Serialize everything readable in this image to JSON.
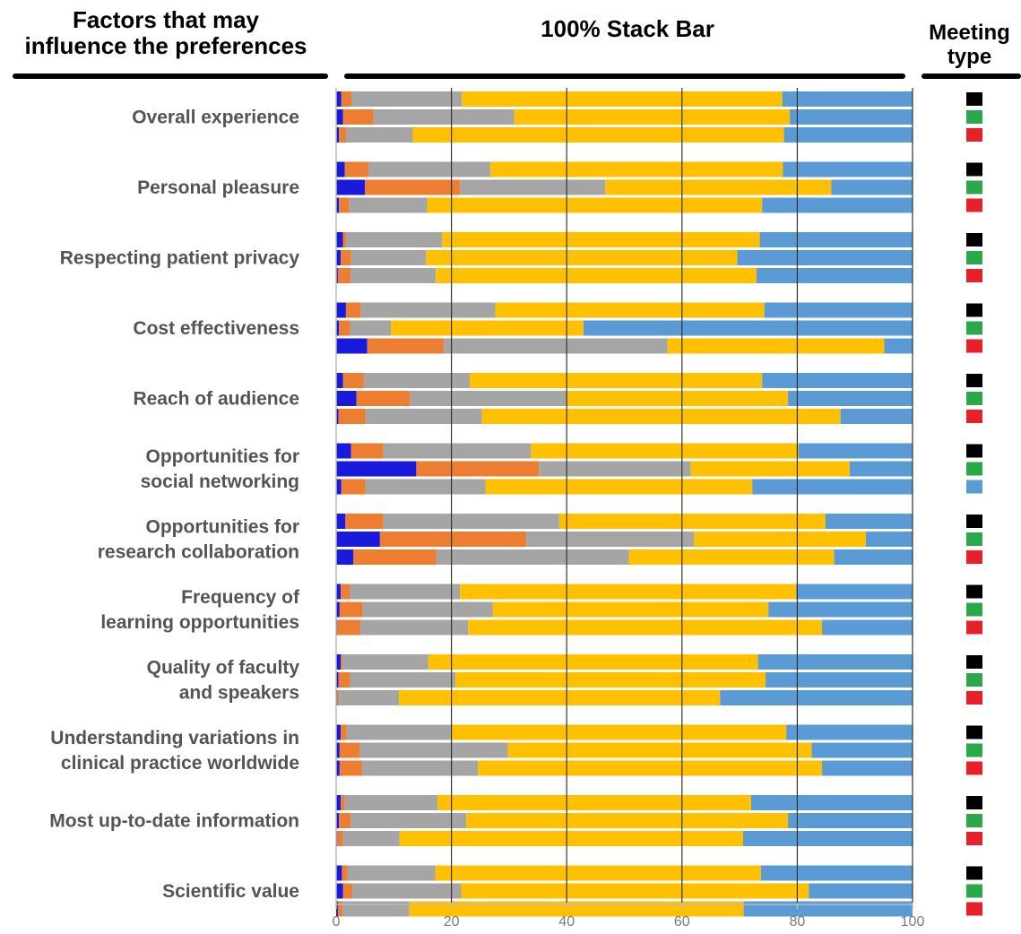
{
  "headers": {
    "left_line1": "Factors that may",
    "left_line2": "influence the preferences",
    "middle": "100% Stack Bar",
    "right_line1": "Meeting",
    "right_line2": "type"
  },
  "meeting_types": [
    {
      "color": "#000000"
    },
    {
      "color": "#2aa84a"
    },
    {
      "color": "#e8202a"
    }
  ],
  "chart_data": {
    "type": "bar",
    "orientation": "horizontal",
    "stacked_percent": true,
    "title": "100% Stack Bar",
    "xlim": [
      0,
      100
    ],
    "xticks": [
      0,
      20,
      40,
      60,
      80,
      100
    ],
    "grid": true,
    "segment_colors": [
      "#1a1adc",
      "#ed7d31",
      "#a5a5a5",
      "#ffc000",
      "#5b9bd5"
    ],
    "categories": [
      {
        "label": [
          "Overall experience"
        ],
        "bars": [
          [
            0.9,
            1.8,
            19.1,
            55.6,
            22.6
          ],
          [
            1.2,
            5.3,
            24.4,
            47.8,
            21.3
          ],
          [
            0.5,
            1.2,
            11.6,
            64.4,
            22.3
          ]
        ],
        "type_colors": [
          "#000000",
          "#2aa84a",
          "#e8202a"
        ]
      },
      {
        "label": [
          "Personal pleasure"
        ],
        "bars": [
          [
            1.5,
            4.1,
            21.2,
            50.7,
            22.5
          ],
          [
            5.0,
            16.5,
            25.2,
            39.2,
            14.1
          ],
          [
            0.5,
            1.8,
            13.5,
            58.1,
            26.1
          ]
        ],
        "type_colors": [
          "#000000",
          "#2aa84a",
          "#e8202a"
        ]
      },
      {
        "label": [
          "Respecting patient privacy"
        ],
        "bars": [
          [
            1.2,
            0.6,
            16.6,
            55.1,
            26.5
          ],
          [
            0.8,
            1.8,
            13.0,
            54.0,
            30.4
          ],
          [
            0.3,
            2.2,
            14.8,
            55.6,
            27.1
          ]
        ],
        "type_colors": [
          "#000000",
          "#2aa84a",
          "#e8202a"
        ]
      },
      {
        "label": [
          "Cost effectiveness"
        ],
        "bars": [
          [
            1.7,
            2.6,
            23.3,
            46.7,
            25.7
          ],
          [
            0.5,
            1.9,
            7.1,
            33.4,
            57.1
          ],
          [
            5.4,
            13.3,
            38.8,
            37.6,
            4.9
          ]
        ],
        "type_colors": [
          "#000000",
          "#2aa84a",
          "#e8202a"
        ]
      },
      {
        "label": [
          "Reach of audience"
        ],
        "bars": [
          [
            1.2,
            3.6,
            18.4,
            50.7,
            26.1
          ],
          [
            3.5,
            9.3,
            27.2,
            38.4,
            21.6
          ],
          [
            0.4,
            4.7,
            20.2,
            62.2,
            12.5
          ]
        ],
        "type_colors": [
          "#000000",
          "#2aa84a",
          "#e8202a"
        ]
      },
      {
        "label": [
          "Opportunities for",
          "social networking"
        ],
        "bars": [
          [
            2.6,
            5.6,
            25.6,
            46.4,
            19.8
          ],
          [
            13.9,
            21.3,
            26.3,
            27.6,
            10.9
          ],
          [
            0.9,
            4.2,
            20.8,
            46.3,
            27.8
          ]
        ],
        "type_colors": [
          "#000000",
          "#2aa84a",
          "#5b9bd5"
        ]
      },
      {
        "label": [
          "Opportunities for",
          "research collaboration"
        ],
        "bars": [
          [
            1.6,
            6.6,
            30.5,
            46.2,
            15.1
          ],
          [
            7.6,
            25.4,
            29.1,
            29.8,
            8.1
          ],
          [
            3.0,
            14.4,
            33.4,
            35.6,
            13.6
          ]
        ],
        "type_colors": [
          "#000000",
          "#2aa84a",
          "#e8202a"
        ]
      },
      {
        "label": [
          "Frequency of",
          "learning opportunities"
        ],
        "bars": [
          [
            0.8,
            1.6,
            19.1,
            58.3,
            20.2
          ],
          [
            0.6,
            4.0,
            22.6,
            47.8,
            25.0
          ],
          [
            0.2,
            4.0,
            18.7,
            61.4,
            15.7
          ]
        ],
        "type_colors": [
          "#000000",
          "#2aa84a",
          "#e8202a"
        ]
      },
      {
        "label": [
          "Quality of faculty",
          "and speakers"
        ],
        "bars": [
          [
            0.8,
            0.3,
            14.9,
            57.2,
            26.8
          ],
          [
            0.4,
            2.0,
            18.3,
            53.8,
            25.5
          ],
          [
            0.2,
            0.3,
            10.4,
            55.7,
            33.4
          ]
        ],
        "type_colors": [
          "#000000",
          "#2aa84a",
          "#e8202a"
        ]
      },
      {
        "label": [
          "Understanding variations in",
          "clinical practice worldwide"
        ],
        "bars": [
          [
            0.8,
            1.0,
            18.1,
            58.2,
            21.9
          ],
          [
            0.6,
            3.5,
            25.7,
            52.7,
            17.5
          ],
          [
            0.6,
            3.9,
            20.1,
            59.7,
            15.7
          ]
        ],
        "type_colors": [
          "#000000",
          "#2aa84a",
          "#e8202a"
        ]
      },
      {
        "label": [
          "Most up-to-date information"
        ],
        "bars": [
          [
            0.8,
            0.7,
            16.1,
            54.4,
            28.0
          ],
          [
            0.5,
            2.0,
            20.1,
            55.8,
            21.6
          ],
          [
            0.2,
            1.0,
            9.8,
            59.6,
            29.4
          ]
        ],
        "type_colors": [
          "#000000",
          "#2aa84a",
          "#e8202a"
        ]
      },
      {
        "label": [
          "Scientific value"
        ],
        "bars": [
          [
            1.0,
            1.0,
            15.2,
            56.5,
            26.3
          ],
          [
            1.2,
            1.6,
            18.9,
            60.3,
            18.0
          ],
          [
            0.3,
            0.8,
            11.6,
            58.0,
            29.3
          ]
        ],
        "type_colors": [
          "#000000",
          "#2aa84a",
          "#e8202a"
        ]
      }
    ]
  }
}
